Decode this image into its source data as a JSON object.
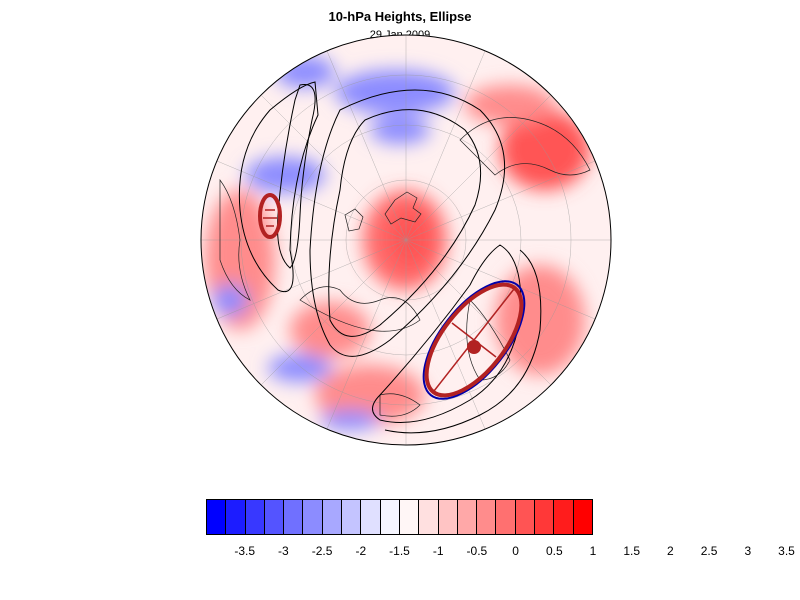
{
  "title": "10-hPa Heights, Ellipse",
  "subtitle": "29 Jan 2009",
  "colorbar": {
    "colors": [
      "#0000ff",
      "#1c1cff",
      "#3838ff",
      "#5454ff",
      "#7070ff",
      "#8c8cff",
      "#a8a8ff",
      "#c4c4ff",
      "#e0e0ff",
      "#f6f6ff",
      "#fff6f6",
      "#ffe0e0",
      "#ffc4c4",
      "#ffa8a8",
      "#ff8c8c",
      "#ff7070",
      "#ff5454",
      "#ff3838",
      "#ff1c1c",
      "#ff0000"
    ],
    "tick_labels": [
      "-3.5",
      "-3",
      "-2.5",
      "-2",
      "-1.5",
      "-1",
      "-0.5",
      "0",
      "0.5",
      "1",
      "1.5",
      "2",
      "2.5",
      "3",
      "3.5"
    ]
  },
  "map": {
    "projection": "polar stereographic (north)",
    "anomaly_colors": {
      "negative": "#8c8cff",
      "positive": "#ff8c8c",
      "strong_positive": "#ff5454",
      "neutral": "#f6f6ff"
    },
    "contour_color": "#000000",
    "ellipse_colors": {
      "fit": "#b22222",
      "outline": "#0000aa"
    },
    "ellipses": [
      {
        "name": "small vortex ellipse"
      },
      {
        "name": "main vortex ellipse"
      }
    ]
  }
}
